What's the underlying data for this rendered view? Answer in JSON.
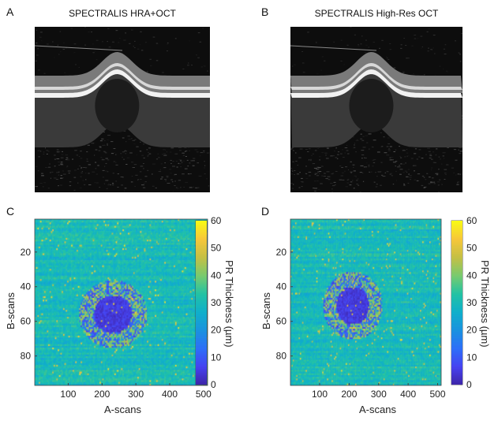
{
  "figure": {
    "panels": {
      "A": {
        "letter": "A",
        "title": "SPECTRALIS HRA+OCT"
      },
      "B": {
        "letter": "B",
        "title": "SPECTRALIS High-Res OCT"
      },
      "C": {
        "letter": "C"
      },
      "D": {
        "letter": "D"
      }
    }
  },
  "chart_data": [
    {
      "panel": "C",
      "type": "heatmap",
      "title": "",
      "xlabel": "A-scans",
      "ylabel": "B-scans",
      "colorbar_label": "PR Thickness (µm)",
      "x_ticks": [
        100,
        200,
        300,
        400,
        500
      ],
      "y_ticks": [
        20,
        40,
        60,
        80
      ],
      "colorbar_ticks": [
        0,
        10,
        20,
        30,
        40,
        50,
        60
      ],
      "xlim": [
        1,
        512
      ],
      "ylim": [
        1,
        97
      ],
      "clim": [
        0,
        60
      ],
      "colormap": "parula",
      "background_thickness": 30,
      "lesion": {
        "center_ascan": 230,
        "center_bscan": 55,
        "description": "central thinning to ~0 µm"
      }
    },
    {
      "panel": "D",
      "type": "heatmap",
      "title": "",
      "xlabel": "A-scans",
      "ylabel": "B-scans",
      "colorbar_label": "PR Thickness (µm)",
      "x_ticks": [
        100,
        200,
        300,
        400,
        500
      ],
      "y_ticks": [
        20,
        40,
        60,
        80
      ],
      "colorbar_ticks": [
        0,
        10,
        20,
        30,
        40,
        50,
        60
      ],
      "xlim": [
        1,
        512
      ],
      "ylim": [
        1,
        97
      ],
      "clim": [
        0,
        60
      ],
      "colormap": "parula",
      "background_thickness": 30,
      "lesion": {
        "center_ascan": 210,
        "center_bscan": 50,
        "description": "central thinning to ~0 µm"
      }
    }
  ],
  "colors": {
    "parula": [
      "#3e26a8",
      "#4743f1",
      "#2e6ff9",
      "#1b93e0",
      "#10b0cb",
      "#23c3a5",
      "#79cb6f",
      "#c5c046",
      "#f7c73b",
      "#f9fb15"
    ]
  }
}
